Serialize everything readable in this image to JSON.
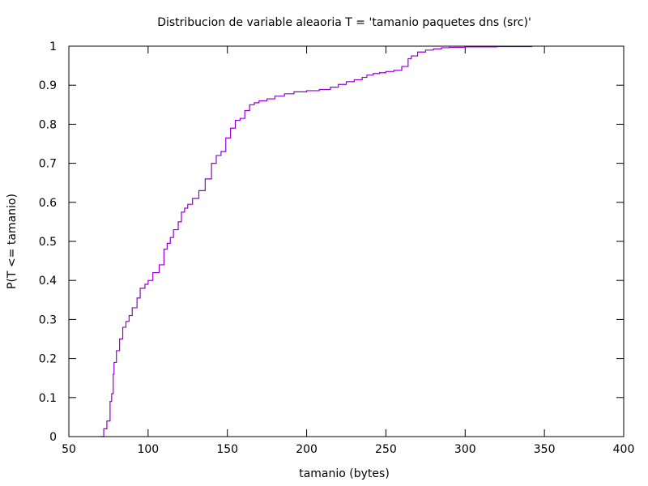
{
  "chart_data": {
    "type": "line",
    "title": "Distribucion de variable aleaoria T = 'tamanio paquetes dns (src)'",
    "xlabel": "tamanio (bytes)",
    "ylabel": "P(T <= tamanio)",
    "xlim": [
      50,
      400
    ],
    "ylim": [
      0,
      1
    ],
    "xticks": [
      50,
      100,
      150,
      200,
      250,
      300,
      350,
      400
    ],
    "xtick_labels": [
      "50",
      "100",
      "150",
      "200",
      "250",
      "300",
      "350",
      "400"
    ],
    "yticks": [
      0,
      0.1,
      0.2,
      0.3,
      0.4,
      0.5,
      0.6,
      0.7,
      0.8,
      0.9,
      1
    ],
    "ytick_labels": [
      "0",
      "0.1",
      "0.2",
      "0.3",
      "0.4",
      "0.5",
      "0.6",
      "0.7",
      "0.8",
      "0.9",
      "1"
    ],
    "grid": false,
    "series": [
      {
        "color": "#9400d3",
        "x": [
          70,
          72,
          74,
          76,
          77,
          78,
          78.5,
          80,
          82,
          84,
          86,
          88,
          90,
          93,
          95,
          98,
          100,
          103,
          107,
          110,
          112,
          114,
          116,
          119,
          121,
          123,
          125,
          128,
          132,
          136,
          140,
          143,
          146,
          149,
          152,
          155,
          158,
          161,
          164,
          167,
          170,
          175,
          180,
          186,
          192,
          200,
          208,
          215,
          220,
          225,
          230,
          235,
          238,
          242,
          246,
          250,
          255,
          260,
          264,
          266,
          270,
          275,
          280,
          285,
          290,
          300,
          320,
          342
        ],
        "y": [
          0,
          0.02,
          0.04,
          0.09,
          0.11,
          0.16,
          0.19,
          0.22,
          0.25,
          0.28,
          0.295,
          0.31,
          0.33,
          0.355,
          0.38,
          0.39,
          0.4,
          0.42,
          0.44,
          0.48,
          0.495,
          0.51,
          0.53,
          0.55,
          0.575,
          0.585,
          0.595,
          0.61,
          0.63,
          0.66,
          0.7,
          0.72,
          0.73,
          0.765,
          0.79,
          0.81,
          0.815,
          0.835,
          0.85,
          0.855,
          0.86,
          0.865,
          0.872,
          0.878,
          0.883,
          0.886,
          0.889,
          0.895,
          0.902,
          0.909,
          0.914,
          0.92,
          0.926,
          0.93,
          0.932,
          0.935,
          0.938,
          0.948,
          0.968,
          0.975,
          0.985,
          0.99,
          0.993,
          0.996,
          0.997,
          0.998,
          0.999,
          1.0
        ]
      }
    ]
  }
}
